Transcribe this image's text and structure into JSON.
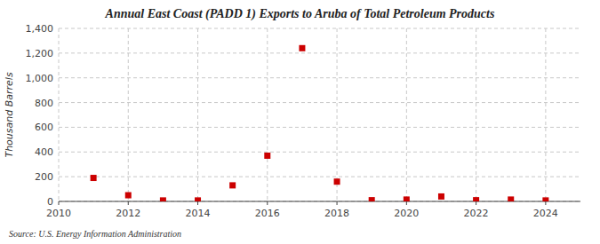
{
  "chart_data": {
    "type": "scatter",
    "title": "Annual East Coast (PADD 1) Exports to Aruba of Total Petroleum Products",
    "y_label": "Thousand Barrels",
    "source": "Source: U.S. Energy Information Administration",
    "x": [
      2011,
      2012,
      2013,
      2014,
      2015,
      2016,
      2017,
      2018,
      2019,
      2020,
      2021,
      2022,
      2023,
      2024
    ],
    "values": [
      190,
      50,
      8,
      8,
      130,
      370,
      1240,
      160,
      10,
      15,
      40,
      10,
      15,
      8
    ],
    "color": "#cc0000",
    "marker": "square",
    "xlim": [
      2010,
      2025
    ],
    "xticks": [
      2010,
      2012,
      2014,
      2016,
      2018,
      2020,
      2022,
      2024
    ],
    "ylim": [
      0,
      1400
    ],
    "yticks": [
      0,
      200,
      400,
      600,
      800,
      {
        "value": 1000,
        "label": "1,000"
      },
      {
        "value": 1200,
        "label": "1,200"
      },
      {
        "value": 1400,
        "label": "1,400"
      }
    ],
    "grid": true
  }
}
